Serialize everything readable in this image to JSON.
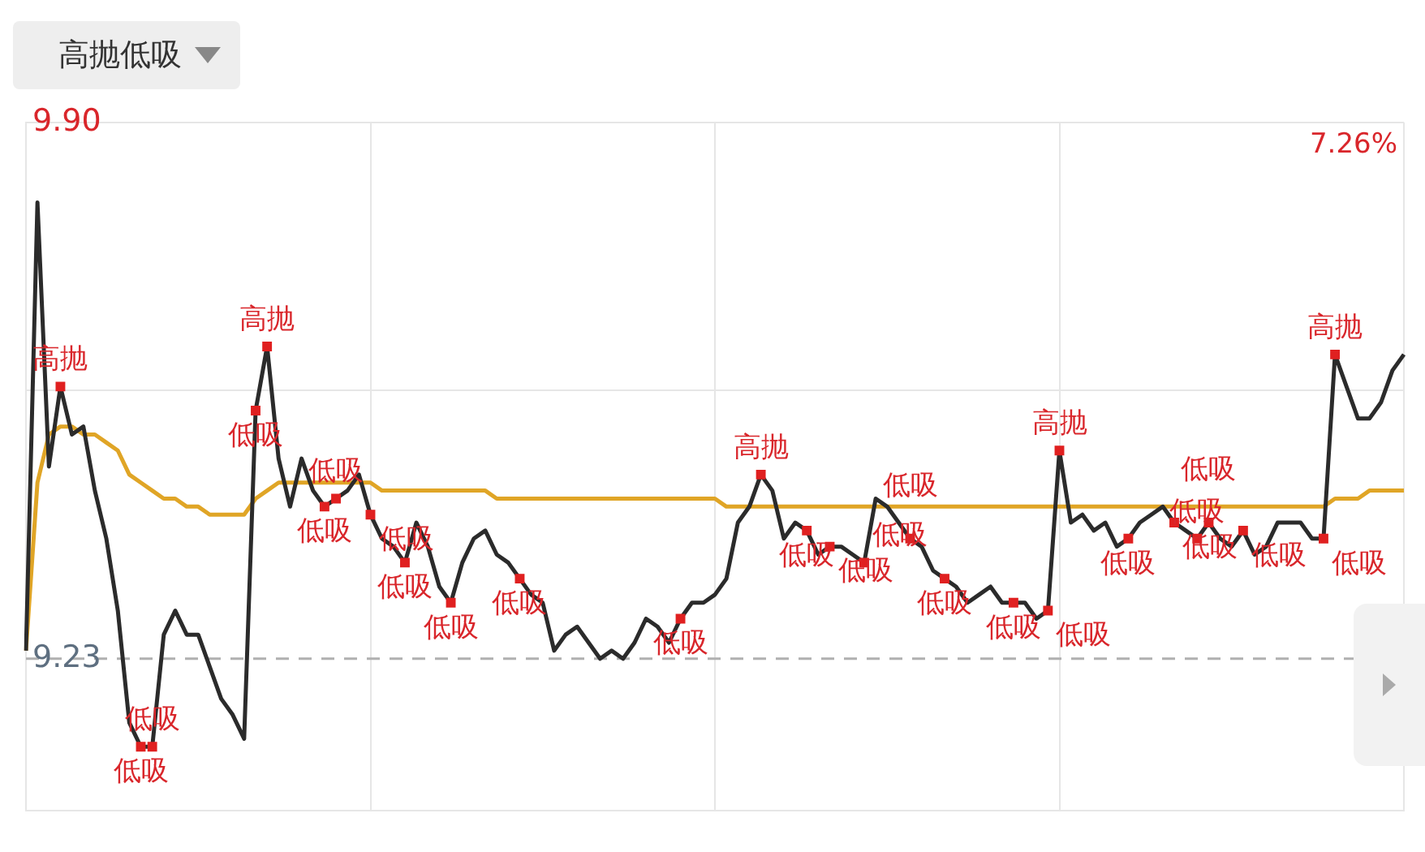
{
  "chart_data": {
    "type": "line",
    "title": "高抛低吸",
    "categories": [
      null,
      null,
      null,
      null,
      null,
      null,
      null,
      null,
      null,
      null,
      null,
      null,
      null,
      null,
      null,
      null,
      null,
      null,
      null,
      null,
      null,
      null,
      null,
      null,
      null,
      null,
      null,
      null,
      null,
      null,
      null,
      null,
      null,
      null,
      null,
      null,
      null,
      null,
      null,
      null,
      null,
      null,
      null,
      null,
      null,
      null,
      null,
      null,
      null,
      null,
      null,
      null,
      null,
      null,
      null,
      null,
      null,
      null,
      null,
      null,
      null,
      null,
      null,
      null,
      null,
      null,
      null,
      null,
      null,
      null,
      null,
      null,
      null,
      null,
      null,
      null,
      null,
      null,
      null,
      null,
      null,
      null,
      null,
      null,
      null,
      null,
      null,
      null,
      null,
      null,
      null,
      null,
      null,
      null,
      null,
      null,
      null,
      null,
      null,
      null,
      null,
      null,
      null,
      null,
      null,
      null,
      null,
      null,
      null,
      null,
      null,
      null,
      null,
      null,
      null,
      null,
      null,
      null,
      null,
      null,
      null
    ],
    "ylim": [
      9.04,
      9.9
    ],
    "yticks": [
      {
        "value": 9.9,
        "label": "9.90"
      },
      {
        "value": 9.565,
        "label": null
      },
      {
        "value": 9.23,
        "label": "9.23"
      }
    ],
    "tick_labels": "y",
    "grid": true,
    "legend": false,
    "ref_lines": [
      {
        "axis": "y",
        "value": 9.23,
        "color": "#b0b0b0",
        "line_style": "dashed"
      }
    ],
    "series": [
      {
        "color": "#2b2b2b",
        "values": [
          9.24,
          9.8,
          9.47,
          9.57,
          9.51,
          9.52,
          9.44,
          9.38,
          9.29,
          9.15,
          9.12,
          9.12,
          9.26,
          9.29,
          9.26,
          9.26,
          9.22,
          9.18,
          9.16,
          9.13,
          9.54,
          9.62,
          9.48,
          9.42,
          9.48,
          9.44,
          9.42,
          9.43,
          9.44,
          9.46,
          9.41,
          9.38,
          9.37,
          9.35,
          9.4,
          9.37,
          9.32,
          9.3,
          9.35,
          9.38,
          9.39,
          9.36,
          9.35,
          9.33,
          9.31,
          9.3,
          9.24,
          9.26,
          9.27,
          9.25,
          9.23,
          9.24,
          9.23,
          9.25,
          9.28,
          9.27,
          9.25,
          9.28,
          9.3,
          9.3,
          9.31,
          9.33,
          9.4,
          9.42,
          9.46,
          9.44,
          9.38,
          9.4,
          9.39,
          9.36,
          9.37,
          9.37,
          9.36,
          9.35,
          9.43,
          9.42,
          9.4,
          9.38,
          9.37,
          9.34,
          9.33,
          9.32,
          9.3,
          9.31,
          9.32,
          9.3,
          9.3,
          9.3,
          9.28,
          9.29,
          9.49,
          9.4,
          9.41,
          9.39,
          9.4,
          9.37,
          9.38,
          9.4,
          9.41,
          9.42,
          9.4,
          9.39,
          9.38,
          9.4,
          9.38,
          9.37,
          9.39,
          9.36,
          9.37,
          9.4,
          9.4,
          9.4,
          9.38,
          9.38,
          9.61,
          9.57,
          9.53,
          9.53,
          9.55,
          9.59,
          9.61
        ]
      },
      {
        "color": "#e0a526",
        "values": [
          9.24,
          9.45,
          9.51,
          9.52,
          9.52,
          9.51,
          9.51,
          9.5,
          9.49,
          9.46,
          9.45,
          9.44,
          9.43,
          9.43,
          9.42,
          9.42,
          9.41,
          9.41,
          9.41,
          9.41,
          9.43,
          9.44,
          9.45,
          9.45,
          9.45,
          9.45,
          9.45,
          9.45,
          9.45,
          9.45,
          9.45,
          9.44,
          9.44,
          9.44,
          9.44,
          9.44,
          9.44,
          9.44,
          9.44,
          9.44,
          9.44,
          9.43,
          9.43,
          9.43,
          9.43,
          9.43,
          9.43,
          9.43,
          9.43,
          9.43,
          9.43,
          9.43,
          9.43,
          9.43,
          9.43,
          9.43,
          9.43,
          9.43,
          9.43,
          9.43,
          9.43,
          9.42,
          9.42,
          9.42,
          9.42,
          9.42,
          9.42,
          9.42,
          9.42,
          9.42,
          9.42,
          9.42,
          9.42,
          9.42,
          9.42,
          9.42,
          9.42,
          9.42,
          9.42,
          9.42,
          9.42,
          9.42,
          9.42,
          9.42,
          9.42,
          9.42,
          9.42,
          9.42,
          9.42,
          9.42,
          9.42,
          9.42,
          9.42,
          9.42,
          9.42,
          9.42,
          9.42,
          9.42,
          9.42,
          9.42,
          9.42,
          9.42,
          9.42,
          9.42,
          9.42,
          9.42,
          9.42,
          9.42,
          9.42,
          9.42,
          9.42,
          9.42,
          9.42,
          9.42,
          9.43,
          9.43,
          9.43,
          9.44,
          9.44,
          9.44,
          9.44
        ]
      },
      {
        "type": "scatter",
        "color": "#e02020",
        "marker": "square",
        "values": [
          null,
          null,
          null,
          9.57,
          null,
          null,
          null,
          null,
          null,
          null,
          9.12,
          9.12,
          null,
          null,
          null,
          null,
          null,
          null,
          null,
          null,
          9.54,
          9.62,
          null,
          null,
          null,
          null,
          9.42,
          9.43,
          null,
          null,
          9.41,
          null,
          null,
          9.35,
          null,
          null,
          null,
          9.3,
          null,
          null,
          null,
          null,
          null,
          9.33,
          null,
          null,
          null,
          null,
          null,
          null,
          null,
          null,
          null,
          null,
          null,
          null,
          null,
          9.28,
          null,
          null,
          null,
          null,
          null,
          null,
          9.46,
          null,
          null,
          null,
          9.39,
          null,
          9.37,
          null,
          null,
          9.35,
          null,
          null,
          null,
          9.38,
          null,
          null,
          9.33,
          null,
          null,
          null,
          null,
          null,
          9.3,
          null,
          null,
          9.29,
          9.49,
          null,
          null,
          null,
          null,
          null,
          9.38,
          null,
          null,
          null,
          9.4,
          null,
          9.38,
          9.4,
          null,
          null,
          9.39,
          null,
          null,
          null,
          null,
          null,
          null,
          9.38,
          9.61,
          null,
          null,
          null,
          null,
          null,
          null
        ],
        "value_labels": [
          null,
          null,
          null,
          "高抛",
          null,
          null,
          null,
          null,
          null,
          null,
          "低吸",
          "低吸",
          null,
          null,
          null,
          null,
          null,
          null,
          null,
          null,
          "低吸",
          "高抛",
          null,
          null,
          null,
          null,
          "低吸",
          "低吸",
          null,
          null,
          "低吸",
          null,
          null,
          "低吸",
          null,
          null,
          null,
          "低吸",
          null,
          null,
          null,
          null,
          null,
          "低吸",
          null,
          null,
          null,
          null,
          null,
          null,
          null,
          null,
          null,
          null,
          null,
          null,
          null,
          "低吸",
          null,
          null,
          null,
          null,
          null,
          null,
          "高抛",
          null,
          null,
          null,
          "低吸",
          null,
          "低吸",
          null,
          null,
          "低吸",
          null,
          null,
          null,
          "低吸",
          null,
          null,
          "低吸",
          null,
          null,
          null,
          null,
          null,
          "低吸",
          null,
          null,
          "低吸",
          "高抛",
          null,
          null,
          null,
          null,
          null,
          "低吸",
          null,
          null,
          null,
          "低吸",
          null,
          "低吸",
          "低吸",
          null,
          null,
          "低吸",
          null,
          null,
          null,
          null,
          null,
          null,
          "低吸",
          "高抛",
          null,
          null,
          null,
          null,
          null,
          null
        ]
      }
    ],
    "annotations": [
      "7.26%"
    ]
  }
}
